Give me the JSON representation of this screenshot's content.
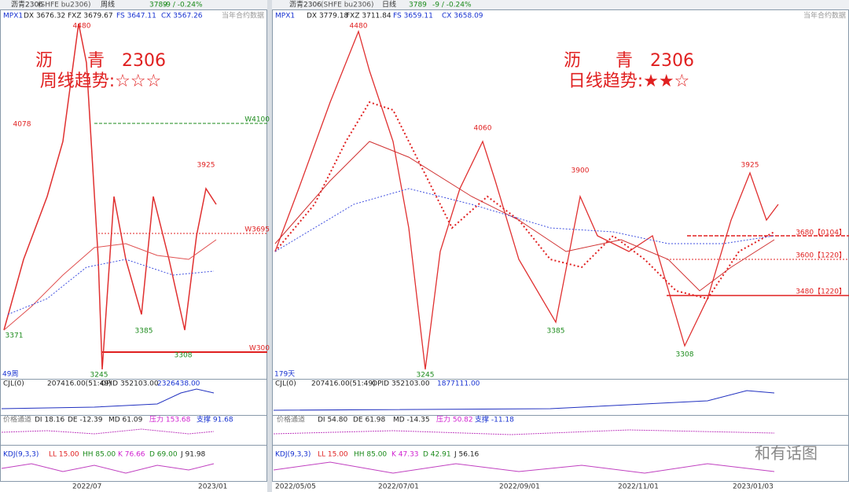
{
  "panels": [
    {
      "header": {
        "name": "沥青2306",
        "code": "(SHFE bu2306)",
        "period": "周线",
        "price": "3789",
        "change": "-9 / -0.24%"
      },
      "indicators": {
        "name": "MPX1",
        "dx": "DX 3676.32",
        "fxz": "FXZ 3679.67",
        "fs": "FS 3647.11",
        "cx": "CX 3567.26",
        "note": "当年合约数据"
      },
      "title": {
        "line1": "沥　　青　2306",
        "line2": "周线趋势:☆☆☆"
      },
      "price_labels": [
        "4480",
        "4078",
        "3925",
        "3371",
        "3385",
        "3308",
        "3245"
      ],
      "level_labels": [
        "W4100",
        "W3695",
        "W300"
      ],
      "bar_count": "49周",
      "cjl": [
        "CJL(0)",
        "207416.00(51:49)",
        "OPID 352103.00",
        "2326438.00"
      ],
      "channel": [
        "价格通道",
        "DI 18.16",
        "DE -12.39",
        "MD 61.09",
        "压力 153.68",
        "支撑 91.68"
      ],
      "kdj": [
        "KDJ(9,3,3)",
        "LL 15.00",
        "HH 85.00",
        "K 76.66",
        "D 69.00",
        "J 91.98"
      ],
      "dates": [
        "2022/07",
        "2023/01"
      ]
    },
    {
      "header": {
        "name": "沥青2306",
        "code": "(SHFE bu2306)",
        "period": "日线",
        "price": "3789",
        "change": "-9 / -0.24%"
      },
      "indicators": {
        "name": "MPX1",
        "dx": "DX 3779.18",
        "fxz": "FXZ 3711.84",
        "fs": "FS 3659.11",
        "cx": "CX 3658.09",
        "note": "当年合约数据"
      },
      "title": {
        "line1": "沥　　青　2306",
        "line2": "日线趋势:★★☆"
      },
      "price_labels": [
        "4480",
        "4060",
        "3900",
        "3925",
        "3385",
        "3245",
        "3308"
      ],
      "level_labels": [
        "3680【0104】",
        "3600【1220】",
        "3480【1220】"
      ],
      "bar_count": "179天",
      "cjl": [
        "CJL(0)",
        "207416.00(51:49)",
        "OPID 352103.00",
        "1877111.00"
      ],
      "channel": [
        "价格通道",
        "DI 54.80",
        "DE 61.98",
        "MD -14.35",
        "压力 50.82",
        "支撑 -11.18"
      ],
      "kdj": [
        "KDJ(9,3,3)",
        "LL 15.00",
        "HH 85.00",
        "K 47.33",
        "D 42.91",
        "J 56.16"
      ],
      "dates": [
        "2022/05/05",
        "2022/07/01",
        "2022/09/01",
        "2022/11/01",
        "2023/01/03"
      ]
    }
  ],
  "watermark": "和有话图"
}
